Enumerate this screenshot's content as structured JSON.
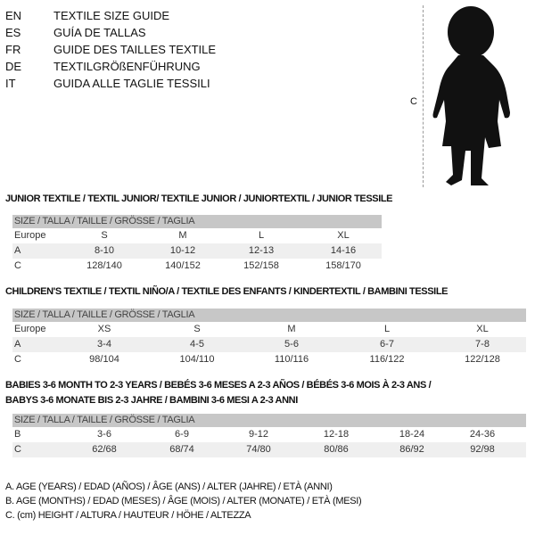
{
  "languages": [
    {
      "code": "EN",
      "title": "TEXTILE SIZE GUIDE"
    },
    {
      "code": "ES",
      "title": "GUÍA DE TALLAS"
    },
    {
      "code": "FR",
      "title": "GUIDE DES TAILLES TEXTILE"
    },
    {
      "code": "DE",
      "title": "TEXTILGRÖßENFÜHRUNG"
    },
    {
      "code": "IT",
      "title": "GUIDA ALLE TAGLIE TESSILI"
    }
  ],
  "figure": {
    "height_label": "C",
    "icon": "baby-silhouette"
  },
  "junior": {
    "title": "JUNIOR TEXTILE / TEXTIL JUNIOR/ TEXTILE JUNIOR / JUNIORTEXTIL / JUNIOR TESSILE",
    "header": "SIZE / TALLA / TAILLE / GRÖSSE / TAGLIA",
    "rows": [
      {
        "label": "Europe",
        "values": [
          "S",
          "M",
          "L",
          "XL"
        ]
      },
      {
        "label": "A",
        "values": [
          "8-10",
          "10-12",
          "12-13",
          "14-16"
        ]
      },
      {
        "label": "C",
        "values": [
          "128/140",
          "140/152",
          "152/158",
          "158/170"
        ]
      }
    ]
  },
  "children": {
    "title": "CHILDREN'S TEXTILE / TEXTIL NIÑO/A / TEXTILE DES ENFANTS / KINDERTEXTIL / BAMBINI TESSILE",
    "header": "SIZE / TALLA / TAILLE / GRÖSSE / TAGLIA",
    "rows": [
      {
        "label": "Europe",
        "values": [
          "XS",
          "S",
          "M",
          "L",
          "XL"
        ]
      },
      {
        "label": "A",
        "values": [
          "3-4",
          "4-5",
          "5-6",
          "6-7",
          "7-8"
        ]
      },
      {
        "label": "C",
        "values": [
          "98/104",
          "104/110",
          "110/116",
          "116/122",
          "122/128"
        ]
      }
    ]
  },
  "babies": {
    "title_line1": "BABIES 3-6 MONTH TO 2-3 YEARS / BEBÉS 3-6 MESES A 2-3 AÑOS / BÉBÉS 3-6 MOIS À 2-3 ANS /",
    "title_line2": "BABYS 3-6 MONATE BIS 2-3 JAHRE / BAMBINI 3-6 MESI A 2-3 ANNI",
    "header": "SIZE / TALLA / TAILLE / GRÖSSE / TAGLIA",
    "rows": [
      {
        "label": "B",
        "values": [
          "3-6",
          "6-9",
          "9-12",
          "12-18",
          "18-24",
          "24-36"
        ]
      },
      {
        "label": "C",
        "values": [
          "62/68",
          "68/74",
          "74/80",
          "80/86",
          "86/92",
          "92/98"
        ]
      }
    ]
  },
  "legend": [
    "A. AGE (YEARS) / EDAD (AÑOS) / ÂGE (ANS) / ALTER (JAHRE) / ETÀ (ANNI)",
    "B. AGE (MONTHS) / EDAD (MESES) / ÂGE (MOIS) / ALTER (MONATE) / ETÀ (MESI)",
    "C. (cm) HEIGHT / ALTURA / HAUTEUR / HÖHE / ALTEZZA"
  ]
}
